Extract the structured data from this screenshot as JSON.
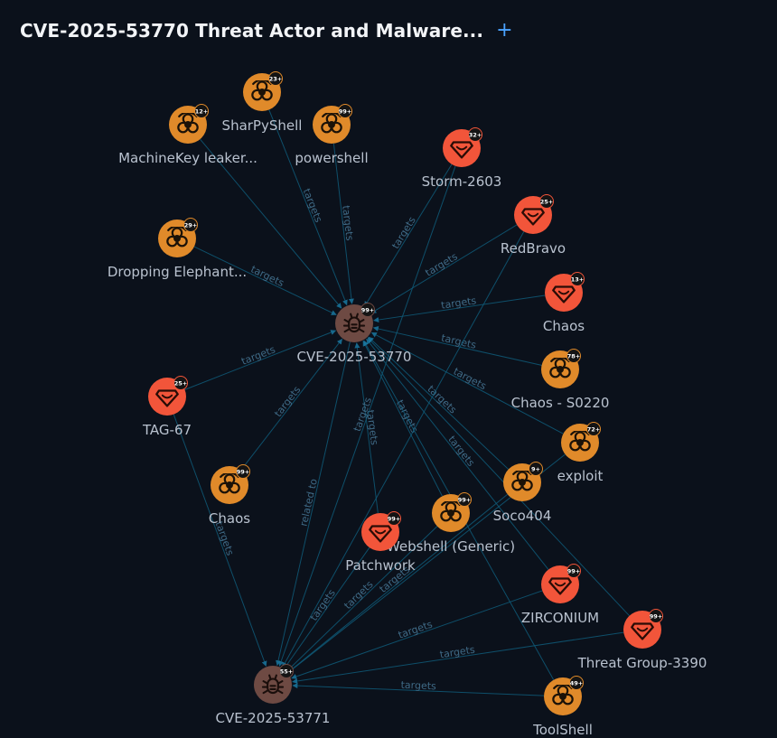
{
  "title": "CVE-2025-53770 Threat Actor and Malware...",
  "add_label": "+",
  "colors": {
    "background": "#0b111b",
    "malware": "#e08a2a",
    "actor": "#f2553a",
    "vulnerability": "#6e4a43",
    "edge": "#0f5a78",
    "edge_label": "#3f6a86"
  },
  "nodes": [
    {
      "id": "cve53770",
      "label": "CVE-2025-53770",
      "type": "vulnerability",
      "icon": "bug-icon",
      "badge": "99+"
    },
    {
      "id": "cve53771",
      "label": "CVE-2025-53771",
      "type": "vulnerability",
      "icon": "bug-icon",
      "badge": "55+"
    },
    {
      "id": "sharpyshell",
      "label": "SharPyShell",
      "type": "malware",
      "icon": "biohazard-icon",
      "badge": "23+"
    },
    {
      "id": "machinekey",
      "label": "MachineKey leaker...",
      "type": "malware",
      "icon": "biohazard-icon",
      "badge": "12+"
    },
    {
      "id": "powershell",
      "label": "powershell",
      "type": "malware",
      "icon": "biohazard-icon",
      "badge": "99+"
    },
    {
      "id": "storm2603",
      "label": "Storm-2603",
      "type": "actor",
      "icon": "actor-icon",
      "badge": "32+"
    },
    {
      "id": "redbravo",
      "label": "RedBravo",
      "type": "actor",
      "icon": "actor-icon",
      "badge": "25+"
    },
    {
      "id": "droppingelephant",
      "label": "Dropping Elephant...",
      "type": "malware",
      "icon": "biohazard-icon",
      "badge": "29+"
    },
    {
      "id": "chaos_actor",
      "label": "Chaos",
      "type": "actor",
      "icon": "actor-icon",
      "badge": "13+"
    },
    {
      "id": "chaos_s0220",
      "label": "Chaos - S0220",
      "type": "malware",
      "icon": "biohazard-icon",
      "badge": "78+"
    },
    {
      "id": "tag67",
      "label": "TAG-67",
      "type": "actor",
      "icon": "actor-icon",
      "badge": "25+"
    },
    {
      "id": "exploit",
      "label": "exploit",
      "type": "malware",
      "icon": "biohazard-icon",
      "badge": "72+"
    },
    {
      "id": "chaos_malware",
      "label": "Chaos",
      "type": "malware",
      "icon": "biohazard-icon",
      "badge": "99+"
    },
    {
      "id": "soco404",
      "label": "Soco404",
      "type": "malware",
      "icon": "biohazard-icon",
      "badge": "9+"
    },
    {
      "id": "webshell",
      "label": "Webshell (Generic)",
      "type": "malware",
      "icon": "biohazard-icon",
      "badge": "99+"
    },
    {
      "id": "patchwork",
      "label": "Patchwork",
      "type": "actor",
      "icon": "actor-icon",
      "badge": "99+"
    },
    {
      "id": "zirconium",
      "label": "ZIRCONIUM",
      "type": "actor",
      "icon": "actor-icon",
      "badge": "99+"
    },
    {
      "id": "threatgroup3390",
      "label": "Threat Group-3390",
      "type": "actor",
      "icon": "actor-icon",
      "badge": "99+"
    },
    {
      "id": "toolshell",
      "label": "ToolShell",
      "type": "malware",
      "icon": "biohazard-icon",
      "badge": "49+"
    }
  ],
  "edges": [
    {
      "from": "machinekey",
      "to": "cve53770",
      "label": ""
    },
    {
      "from": "sharpyshell",
      "to": "cve53770",
      "label": "targets"
    },
    {
      "from": "powershell",
      "to": "cve53770",
      "label": "targets"
    },
    {
      "from": "storm2603",
      "to": "cve53770",
      "label": "targets"
    },
    {
      "from": "redbravo",
      "to": "cve53770",
      "label": "targets"
    },
    {
      "from": "droppingelephant",
      "to": "cve53770",
      "label": "targets"
    },
    {
      "from": "chaos_actor",
      "to": "cve53770",
      "label": "targets"
    },
    {
      "from": "chaos_s0220",
      "to": "cve53770",
      "label": "targets"
    },
    {
      "from": "tag67",
      "to": "cve53770",
      "label": "targets"
    },
    {
      "from": "exploit",
      "to": "cve53770",
      "label": "targets"
    },
    {
      "from": "chaos_malware",
      "to": "cve53770",
      "label": "targets"
    },
    {
      "from": "soco404",
      "to": "cve53770",
      "label": "targets"
    },
    {
      "from": "webshell",
      "to": "cve53770",
      "label": "targets"
    },
    {
      "from": "patchwork",
      "to": "cve53770",
      "label": "targets"
    },
    {
      "from": "zirconium",
      "to": "cve53770",
      "label": "targets"
    },
    {
      "from": "threatgroup3390",
      "to": "cve53770",
      "label": ""
    },
    {
      "from": "toolshell",
      "to": "cve53770",
      "label": ""
    },
    {
      "from": "cve53770",
      "to": "cve53771",
      "label": "related to"
    },
    {
      "from": "tag67",
      "to": "cve53771",
      "label": "targets"
    },
    {
      "from": "storm2603",
      "to": "cve53771",
      "label": "targets"
    },
    {
      "from": "redbravo",
      "to": "cve53771",
      "label": ""
    },
    {
      "from": "soco404",
      "to": "cve53771",
      "label": "targets"
    },
    {
      "from": "webshell",
      "to": "cve53771",
      "label": "targets"
    },
    {
      "from": "patchwork",
      "to": "cve53771",
      "label": "targets"
    },
    {
      "from": "zirconium",
      "to": "cve53771",
      "label": "targets"
    },
    {
      "from": "threatgroup3390",
      "to": "cve53771",
      "label": "targets"
    },
    {
      "from": "toolshell",
      "to": "cve53771",
      "label": "targets"
    },
    {
      "from": "exploit",
      "to": "cve53771",
      "label": ""
    }
  ]
}
